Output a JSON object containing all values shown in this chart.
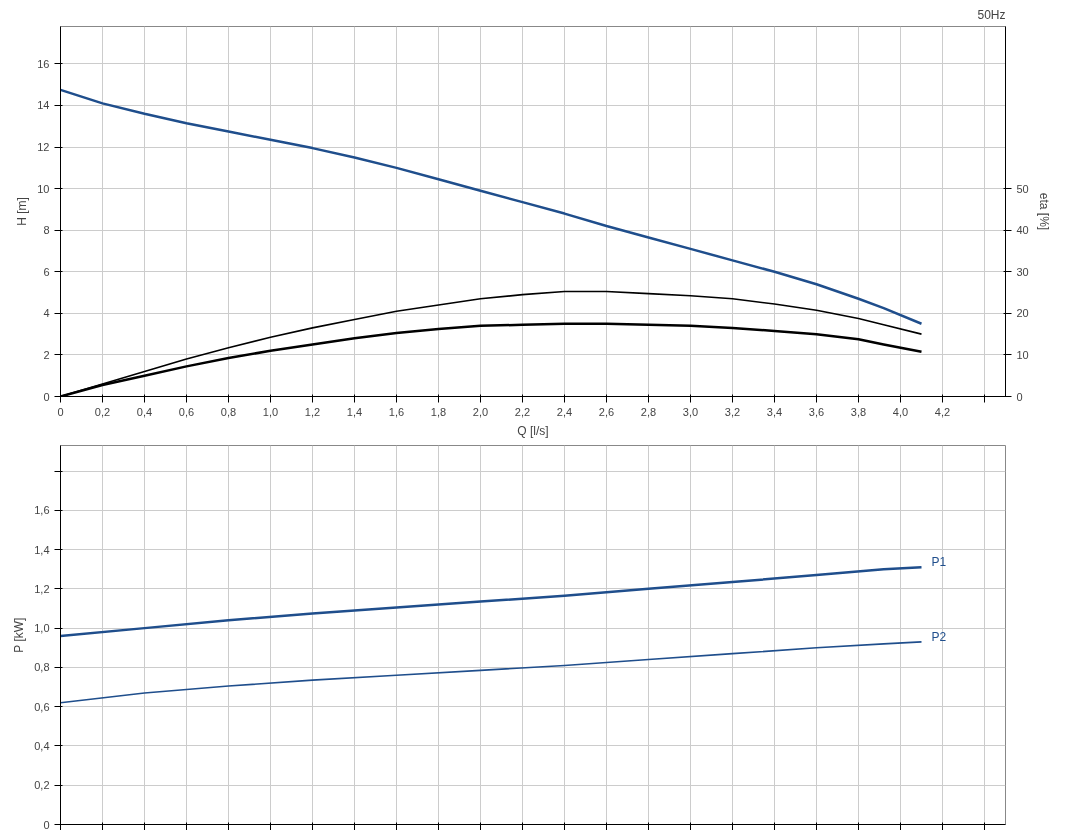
{
  "chart_data": [
    {
      "type": "line",
      "title": "50Hz",
      "xlabel": "Q [l/s]",
      "ylabel": "H [m]",
      "y2label": "eta [%]",
      "x": [
        0,
        0.2,
        0.4,
        0.6,
        0.8,
        1.0,
        1.2,
        1.4,
        1.6,
        1.8,
        2.0,
        2.2,
        2.4,
        2.6,
        2.8,
        3.0,
        3.2,
        3.4,
        3.6,
        3.8,
        3.92,
        4.1
      ],
      "xlim": [
        0,
        4.5
      ],
      "xticks": [
        {
          "value": 0,
          "label": "0"
        },
        {
          "value": 0.2,
          "label": "0,2"
        },
        {
          "value": 0.4,
          "label": "0,4"
        },
        {
          "value": 0.6,
          "label": "0,6"
        },
        {
          "value": 0.8,
          "label": "0,8"
        },
        {
          "value": 1.0,
          "label": "1,0"
        },
        {
          "value": 1.2,
          "label": "1,2"
        },
        {
          "value": 1.4,
          "label": "1,4"
        },
        {
          "value": 1.6,
          "label": "1,6"
        },
        {
          "value": 1.8,
          "label": "1,8"
        },
        {
          "value": 2.0,
          "label": "2,0"
        },
        {
          "value": 2.2,
          "label": "2,2"
        },
        {
          "value": 2.4,
          "label": "2,4"
        },
        {
          "value": 2.6,
          "label": "2,6"
        },
        {
          "value": 2.8,
          "label": "2,8"
        },
        {
          "value": 3.0,
          "label": "3,0"
        },
        {
          "value": 3.2,
          "label": "3,2"
        },
        {
          "value": 3.4,
          "label": "3,4"
        },
        {
          "value": 3.6,
          "label": "3,6"
        },
        {
          "value": 3.8,
          "label": "3,8"
        },
        {
          "value": 4.0,
          "label": "4,0"
        },
        {
          "value": 4.2,
          "label": "4,2"
        },
        {
          "value": 4.4,
          "label": null
        }
      ],
      "ylim": [
        0,
        17.8
      ],
      "yticks": [
        0,
        2,
        4,
        6,
        8,
        10,
        12,
        14,
        16
      ],
      "y2lim": [
        0,
        89
      ],
      "y2ticks": [
        0,
        10,
        20,
        30,
        40,
        50
      ],
      "grid": true,
      "series": [
        {
          "color": "#1f4e8c",
          "values": [
            14.75,
            14.1,
            13.6,
            13.15,
            12.75,
            12.35,
            11.95,
            11.5,
            11.0,
            10.45,
            9.9,
            9.35,
            8.8,
            8.2,
            7.65,
            7.1,
            6.55,
            6.0,
            5.4,
            4.7,
            4.25,
            3.5
          ]
        },
        {
          "color": "#000000",
          "axis": "y2",
          "values": [
            0,
            3,
            6,
            9,
            11.75,
            14.25,
            16.5,
            18.5,
            20.5,
            22,
            23.5,
            24.5,
            25.25,
            25.25,
            24.75,
            24.25,
            23.5,
            22.25,
            20.75,
            18.75,
            17.25,
            15
          ]
        },
        {
          "color": "#000000",
          "axis": "y2",
          "values": [
            0,
            2.75,
            5,
            7.25,
            9.25,
            11,
            12.5,
            14,
            15.25,
            16.25,
            17,
            17.25,
            17.5,
            17.5,
            17.25,
            17,
            16.5,
            15.75,
            15,
            13.75,
            12.5,
            10.75
          ]
        }
      ]
    },
    {
      "type": "line",
      "ylabel": "P [kW]",
      "x": [
        0,
        0.4,
        0.8,
        1.2,
        1.6,
        2.0,
        2.4,
        2.8,
        3.2,
        3.6,
        3.92,
        4.1
      ],
      "xlim": [
        0,
        4.5
      ],
      "xticks": [
        0,
        0.2,
        0.4,
        0.6,
        0.8,
        1.0,
        1.2,
        1.4,
        1.6,
        1.8,
        2.0,
        2.2,
        2.4,
        2.6,
        2.8,
        3.0,
        3.2,
        3.4,
        3.6,
        3.8,
        4.0,
        4.2,
        4.4
      ],
      "ylim": [
        0,
        1.93
      ],
      "yticks": [
        {
          "value": 0,
          "label": "0"
        },
        {
          "value": 0.2,
          "label": "0,2"
        },
        {
          "value": 0.4,
          "label": "0,4"
        },
        {
          "value": 0.6,
          "label": "0,6"
        },
        {
          "value": 0.8,
          "label": "0,8"
        },
        {
          "value": 1.0,
          "label": "1,0"
        },
        {
          "value": 1.2,
          "label": "1,2"
        },
        {
          "value": 1.4,
          "label": "1,4"
        },
        {
          "value": 1.6,
          "label": "1,6"
        },
        {
          "value": 1.8,
          "label": null
        }
      ],
      "tick_labels": "y",
      "grid": true,
      "series": [
        {
          "name": "P1",
          "color": "#1f4e8c",
          "values": [
            0.96,
            1.0,
            1.04,
            1.075,
            1.105,
            1.135,
            1.165,
            1.2,
            1.235,
            1.27,
            1.3,
            1.31
          ]
        },
        {
          "name": "P2",
          "color": "#1f4e8c",
          "values": [
            0.62,
            0.67,
            0.705,
            0.735,
            0.76,
            0.785,
            0.81,
            0.84,
            0.87,
            0.9,
            0.92,
            0.93
          ]
        }
      ]
    }
  ]
}
